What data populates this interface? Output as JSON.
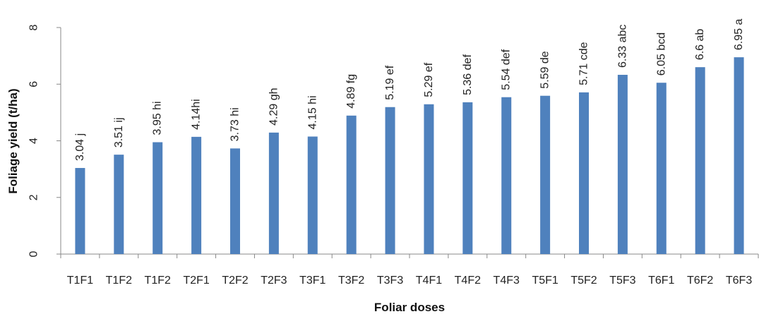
{
  "chart_data": {
    "type": "bar",
    "xlabel": "Foliar doses",
    "ylabel": "Foliage yield (t/ha)",
    "ylim": [
      0,
      8
    ],
    "yticks": [
      0,
      2,
      4,
      6,
      8
    ],
    "grid": false,
    "legend": "none",
    "bar_color": "#4F81BD",
    "categories": [
      "T1F1",
      "T1F2",
      "T1F2",
      "T2F1",
      "T2F2",
      "T2F3",
      "T3F1",
      "T3F2",
      "T3F3",
      "T4F1",
      "T4F2",
      "T4F3",
      "T5F1",
      "T5F2",
      "T5F3",
      "T6F1",
      "T6F2",
      "T6F3"
    ],
    "values": [
      3.04,
      3.51,
      3.95,
      4.14,
      3.73,
      4.29,
      4.15,
      4.89,
      5.19,
      5.29,
      5.36,
      5.54,
      5.59,
      5.71,
      6.33,
      6.05,
      6.6,
      6.95
    ],
    "data_labels": [
      "3.04 j",
      "3.51 ij",
      "3.95 hi",
      "4.14hi",
      "3.73 hi",
      "4.29 gh",
      "4.15 hi",
      "4.89 fg",
      "5.19 ef",
      "5.29 ef",
      "5.36 def",
      "5.54 def",
      "5.59 de",
      "5.71 cde",
      "6.33 abc",
      "6.05 bcd",
      "6.6 ab",
      "6.95 a"
    ]
  }
}
